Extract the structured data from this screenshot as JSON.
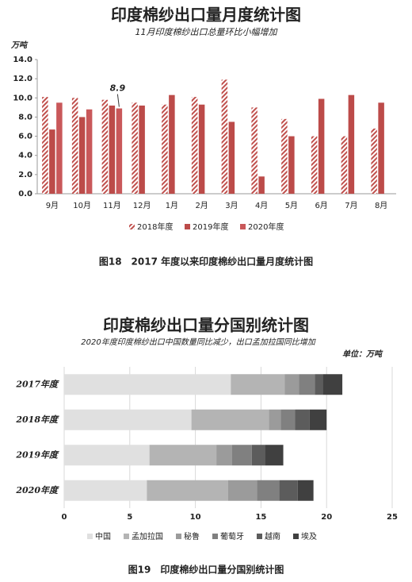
{
  "chart_data": [
    {
      "type": "bar",
      "title": "印度棉纱出口量月度统计图",
      "subtitle": "11月印度棉纱出口总量环比小幅增加",
      "y_unit": "万吨",
      "categories": [
        "9月",
        "10月",
        "11月",
        "12月",
        "1月",
        "2月",
        "3月",
        "4月",
        "5月",
        "6月",
        "7月",
        "8月"
      ],
      "series": [
        {
          "name": "2018年度",
          "color": "#c0504d",
          "hatch": true,
          "values": [
            10.1,
            10.0,
            9.8,
            9.5,
            9.3,
            10.1,
            11.9,
            9.0,
            7.8,
            6.0,
            6.0,
            6.8
          ]
        },
        {
          "name": "2019年度",
          "color": "#bc4b49",
          "values": [
            6.7,
            8.0,
            9.2,
            9.2,
            10.3,
            9.3,
            7.5,
            1.8,
            6.0,
            9.9,
            10.3,
            9.5
          ]
        },
        {
          "name": "2020年度",
          "color": "#c9585a",
          "values": [
            9.5,
            8.8,
            8.9,
            null,
            null,
            null,
            null,
            null,
            null,
            null,
            null,
            null
          ]
        }
      ],
      "annotated_point": [
        2,
        2
      ],
      "ylim": [
        0,
        14
      ],
      "yticks": [
        {
          "value": 0,
          "label": "0.0"
        },
        {
          "value": 2,
          "label": "2.0"
        },
        {
          "value": 4,
          "label": "4.0"
        },
        {
          "value": 6,
          "label": "6.0"
        },
        {
          "value": 8,
          "label": "8.0"
        },
        {
          "value": 10,
          "label": "10.0"
        },
        {
          "value": 12,
          "label": "12.0"
        },
        {
          "value": 14,
          "label": "14.0"
        }
      ],
      "grid": false
    },
    {
      "type": "stacked_barh",
      "title": "印度棉纱出口量分国别统计图",
      "subtitle": "2020年度印度棉纱出口中国数量同比减少，出口孟加拉国同比增加",
      "unit": "单位：万吨",
      "categories": [
        "2017年度",
        "2018年度",
        "2019年度",
        "2020年度"
      ],
      "series": [
        {
          "name": "中国",
          "color": "#e0e0e0",
          "values": [
            12.7,
            9.7,
            6.5,
            6.3
          ]
        },
        {
          "name": "孟加拉国",
          "color": "#b4b4b4",
          "values": [
            4.1,
            5.9,
            5.1,
            6.2
          ]
        },
        {
          "name": "秘鲁",
          "color": "#9b9b9b",
          "values": [
            1.1,
            0.9,
            1.2,
            2.2
          ]
        },
        {
          "name": "葡萄牙",
          "color": "#808080",
          "values": [
            1.2,
            1.1,
            1.5,
            1.7
          ]
        },
        {
          "name": "越南",
          "color": "#5c5c5c",
          "values": [
            0.6,
            1.1,
            1.0,
            1.4
          ]
        },
        {
          "name": "埃及",
          "color": "#404040",
          "values": [
            1.5,
            1.3,
            1.4,
            1.2
          ]
        }
      ],
      "xlim": [
        0,
        25
      ],
      "xticks": [
        0,
        5,
        10,
        15,
        20,
        25
      ],
      "grid": true
    }
  ],
  "captions": [
    "图18　2017 年度以来印度棉纱出口量月度统计图",
    "图19　印度棉纱出口量分国别统计图"
  ]
}
